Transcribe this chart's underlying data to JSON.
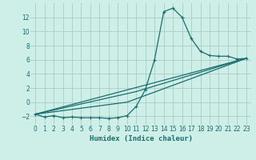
{
  "background_color": "#ceeee8",
  "grid_color": "#aaccc6",
  "line_color": "#1a6e6e",
  "xlabel": "Humidex (Indice chaleur)",
  "ylim": [
    -3.2,
    14.0
  ],
  "xlim": [
    -0.5,
    23.5
  ],
  "yticks": [
    -2,
    0,
    2,
    4,
    6,
    8,
    10,
    12
  ],
  "xticks": [
    0,
    1,
    2,
    3,
    4,
    5,
    6,
    7,
    8,
    9,
    10,
    11,
    12,
    13,
    14,
    15,
    16,
    17,
    18,
    19,
    20,
    21,
    22,
    23
  ],
  "series1_x": [
    0,
    1,
    2,
    3,
    4,
    5,
    6,
    7,
    8,
    9,
    10,
    11,
    12,
    13,
    14,
    15,
    16,
    17,
    18,
    19,
    20,
    21,
    22,
    23
  ],
  "series1_y": [
    -1.7,
    -2.1,
    -1.9,
    -2.2,
    -2.1,
    -2.2,
    -2.2,
    -2.2,
    -2.3,
    -2.2,
    -1.9,
    -0.6,
    1.8,
    6.0,
    12.8,
    13.3,
    12.0,
    9.0,
    7.2,
    6.6,
    6.5,
    6.5,
    6.1,
    6.2
  ],
  "series2_x": [
    0,
    23
  ],
  "series2_y": [
    -1.7,
    6.2
  ],
  "series3_x": [
    0,
    11,
    23
  ],
  "series3_y": [
    -1.7,
    1.5,
    6.2
  ],
  "series4_x": [
    0,
    10,
    23
  ],
  "series4_y": [
    -1.7,
    0.0,
    6.2
  ]
}
